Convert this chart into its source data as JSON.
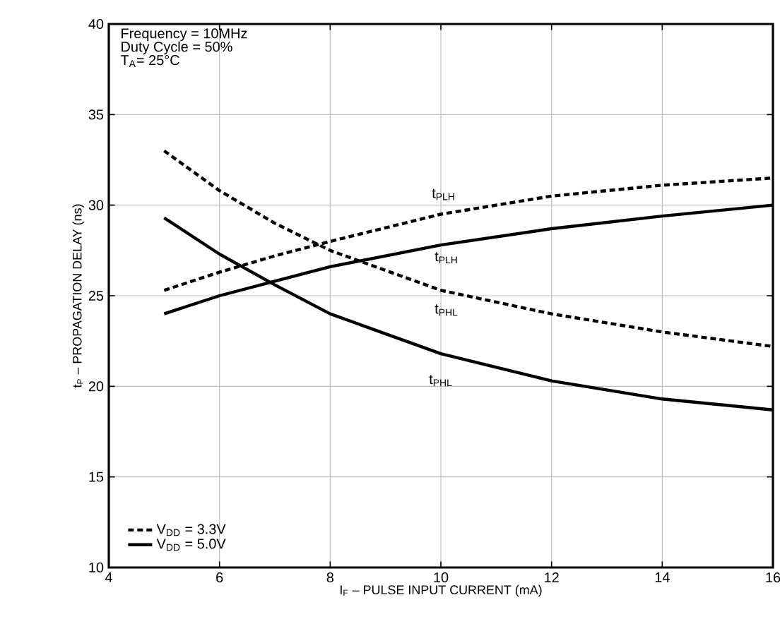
{
  "chart_data": {
    "type": "line",
    "xlabel": "I$_{F}$ – PULSE INPUT CURRENT (mA)",
    "ylabel": "t$_{P}$ – PROPAGATION DELAY (ns)",
    "xlim": [
      4,
      16
    ],
    "ylim": [
      10,
      40
    ],
    "xticks": [
      4,
      6,
      8,
      10,
      12,
      14,
      16
    ],
    "yticks": [
      10,
      15,
      20,
      25,
      30,
      35,
      40
    ],
    "grid": true,
    "legend": "bottom left",
    "marker": "none",
    "series": [
      {
        "name": "V$_{DD}$ = 3.3V",
        "color": "#000000",
        "line_style": "dashed",
        "x": [
          5,
          6,
          7,
          8,
          10,
          12,
          14,
          16
        ],
        "values": [
          25.3,
          26.3,
          27.2,
          28,
          29.5,
          30.5,
          31.1,
          31.5
        ]
      },
      {
        "color": "#000000",
        "line_style": "dashed",
        "x": [
          5,
          6,
          7,
          8,
          10,
          12,
          14,
          16
        ],
        "values": [
          33,
          30.8,
          29,
          27.5,
          25.3,
          24,
          23,
          22.2
        ]
      },
      {
        "name": "V$_{DD}$ = 5.0V",
        "color": "#000000",
        "line_style": "solid",
        "x": [
          5,
          6,
          7,
          8,
          10,
          12,
          14,
          16
        ],
        "values": [
          24,
          25,
          25.8,
          26.6,
          27.8,
          28.7,
          29.4,
          30
        ]
      },
      {
        "color": "#000000",
        "line_style": "solid",
        "x": [
          5,
          6,
          7,
          8,
          10,
          12,
          14,
          16
        ],
        "values": [
          29.3,
          27.3,
          25.6,
          24,
          21.8,
          20.3,
          19.3,
          18.7
        ]
      }
    ],
    "annotations": [
      "Frequency = 10MHz",
      "Duty Cycle = 50%",
      "T$_{A}$= 25°C",
      "t$_{PLH}$",
      "t$_{PHL}$",
      "t$_{PLH}$",
      "t$_{PHL}$"
    ]
  }
}
